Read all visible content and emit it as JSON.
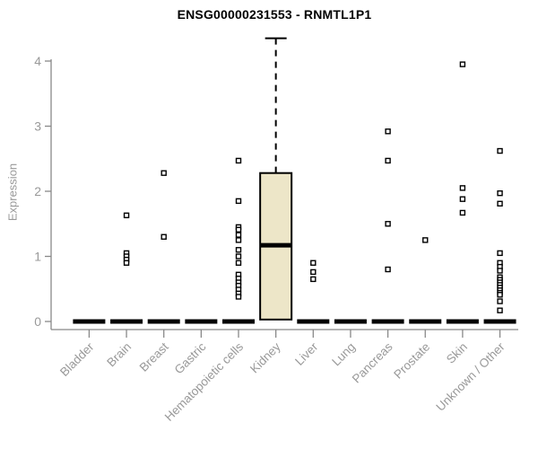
{
  "chart_data": {
    "type": "box",
    "title": "ENSG00000231553 - RNMTL1P1",
    "ylabel": "Expression",
    "xlabel": "",
    "yticks": [
      0,
      1,
      2,
      3,
      4
    ],
    "ylim": [
      0,
      4.4
    ],
    "grid": false,
    "legend": "none",
    "colors": {
      "box_fill": "#EDE6C8",
      "box_stroke": "#000000",
      "outlier_stroke": "#000000",
      "outlier_fill": "#ffffff",
      "axis_line": "#888888",
      "axis_text": "#999999",
      "title_text": "#000000",
      "zero_bar": "#000000"
    },
    "categories": [
      {
        "label": "Bladder",
        "zero_bar": true,
        "outliers": []
      },
      {
        "label": "Brain",
        "zero_bar": true,
        "outliers": [
          1.63,
          1.05,
          1.0,
          0.95,
          0.9
        ]
      },
      {
        "label": "Breast",
        "zero_bar": true,
        "outliers": [
          2.28,
          1.3
        ]
      },
      {
        "label": "Gastric",
        "zero_bar": true,
        "outliers": []
      },
      {
        "label": "Hematopoietic cells",
        "zero_bar": true,
        "outliers": [
          2.47,
          1.85,
          1.45,
          1.41,
          1.33,
          1.25,
          1.1,
          1.0,
          0.9,
          0.72,
          0.66,
          0.6,
          0.55,
          0.49,
          0.43,
          0.38
        ]
      },
      {
        "label": "Kidney",
        "zero_bar": false,
        "box": {
          "q1": 0.03,
          "median": 1.17,
          "q3": 2.28,
          "whisker_high": 4.35
        },
        "outliers": []
      },
      {
        "label": "Liver",
        "zero_bar": true,
        "outliers": [
          0.9,
          0.76,
          0.65
        ]
      },
      {
        "label": "Lung",
        "zero_bar": true,
        "outliers": []
      },
      {
        "label": "Pancreas",
        "zero_bar": true,
        "outliers": [
          2.92,
          2.47,
          1.5,
          0.8
        ]
      },
      {
        "label": "Prostate",
        "zero_bar": true,
        "outliers": [
          1.25
        ]
      },
      {
        "label": "Skin",
        "zero_bar": true,
        "outliers": [
          3.95,
          2.05,
          1.88,
          1.67
        ]
      },
      {
        "label": "Unknown / Other",
        "zero_bar": true,
        "outliers": [
          2.62,
          1.97,
          1.81,
          1.05,
          0.9,
          0.84,
          0.78,
          0.68,
          0.64,
          0.6,
          0.56,
          0.52,
          0.48,
          0.44,
          0.41,
          0.31,
          0.17
        ]
      }
    ]
  }
}
